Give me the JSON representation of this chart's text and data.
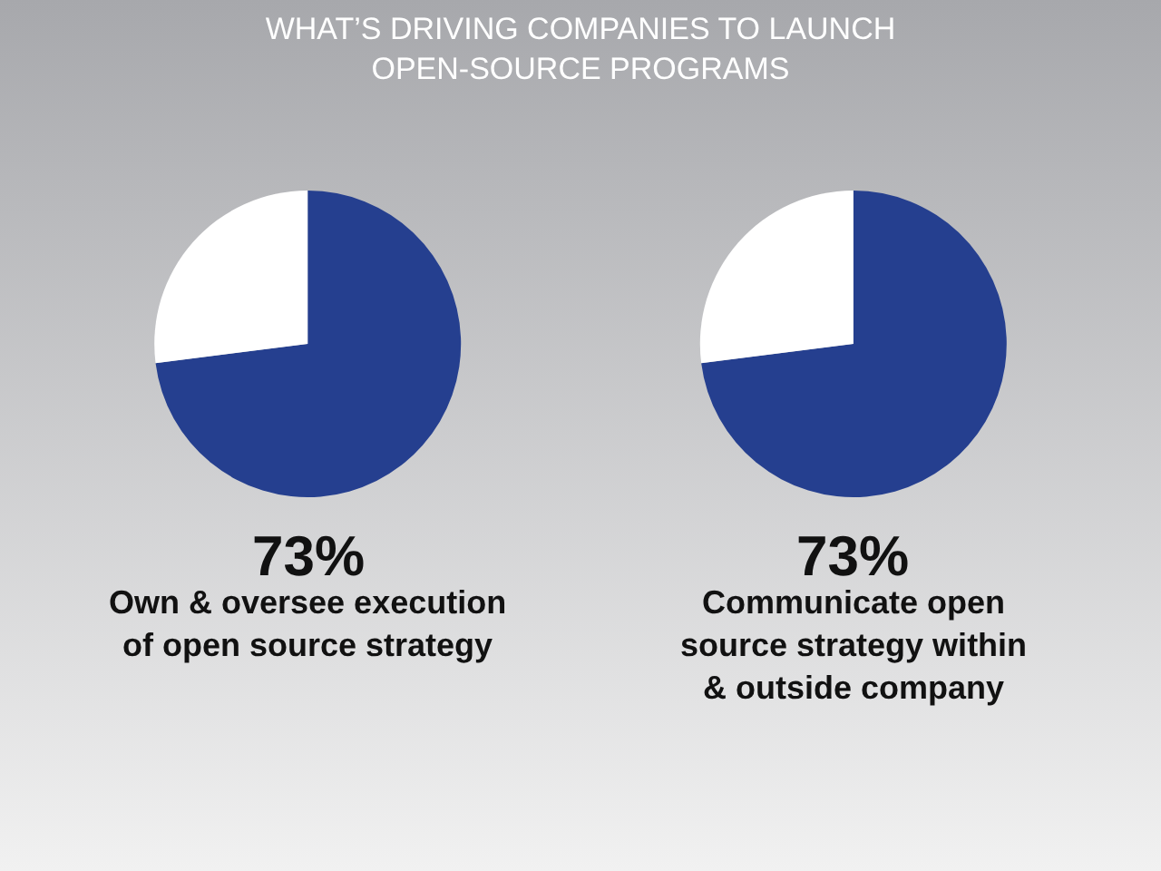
{
  "chart_data": [
    {
      "type": "pie",
      "title": "WHAT’S DRIVING COMPANIES TO LAUNCH\nOPEN-SOURCE PROGRAMS",
      "categories": [
        "Own & oversee execution\nof open source strategy",
        null
      ],
      "values": [
        73,
        27
      ],
      "colors": [
        "#253f8f",
        "#ffffff"
      ],
      "value_labels": [
        "73%",
        null
      ]
    },
    {
      "type": "pie",
      "categories": [
        "Communicate open\nsource strategy within\n& outside company",
        null
      ],
      "values": [
        73,
        27
      ],
      "colors": [
        "#253f8f",
        "#ffffff"
      ],
      "value_labels": [
        "73%",
        null
      ]
    }
  ]
}
